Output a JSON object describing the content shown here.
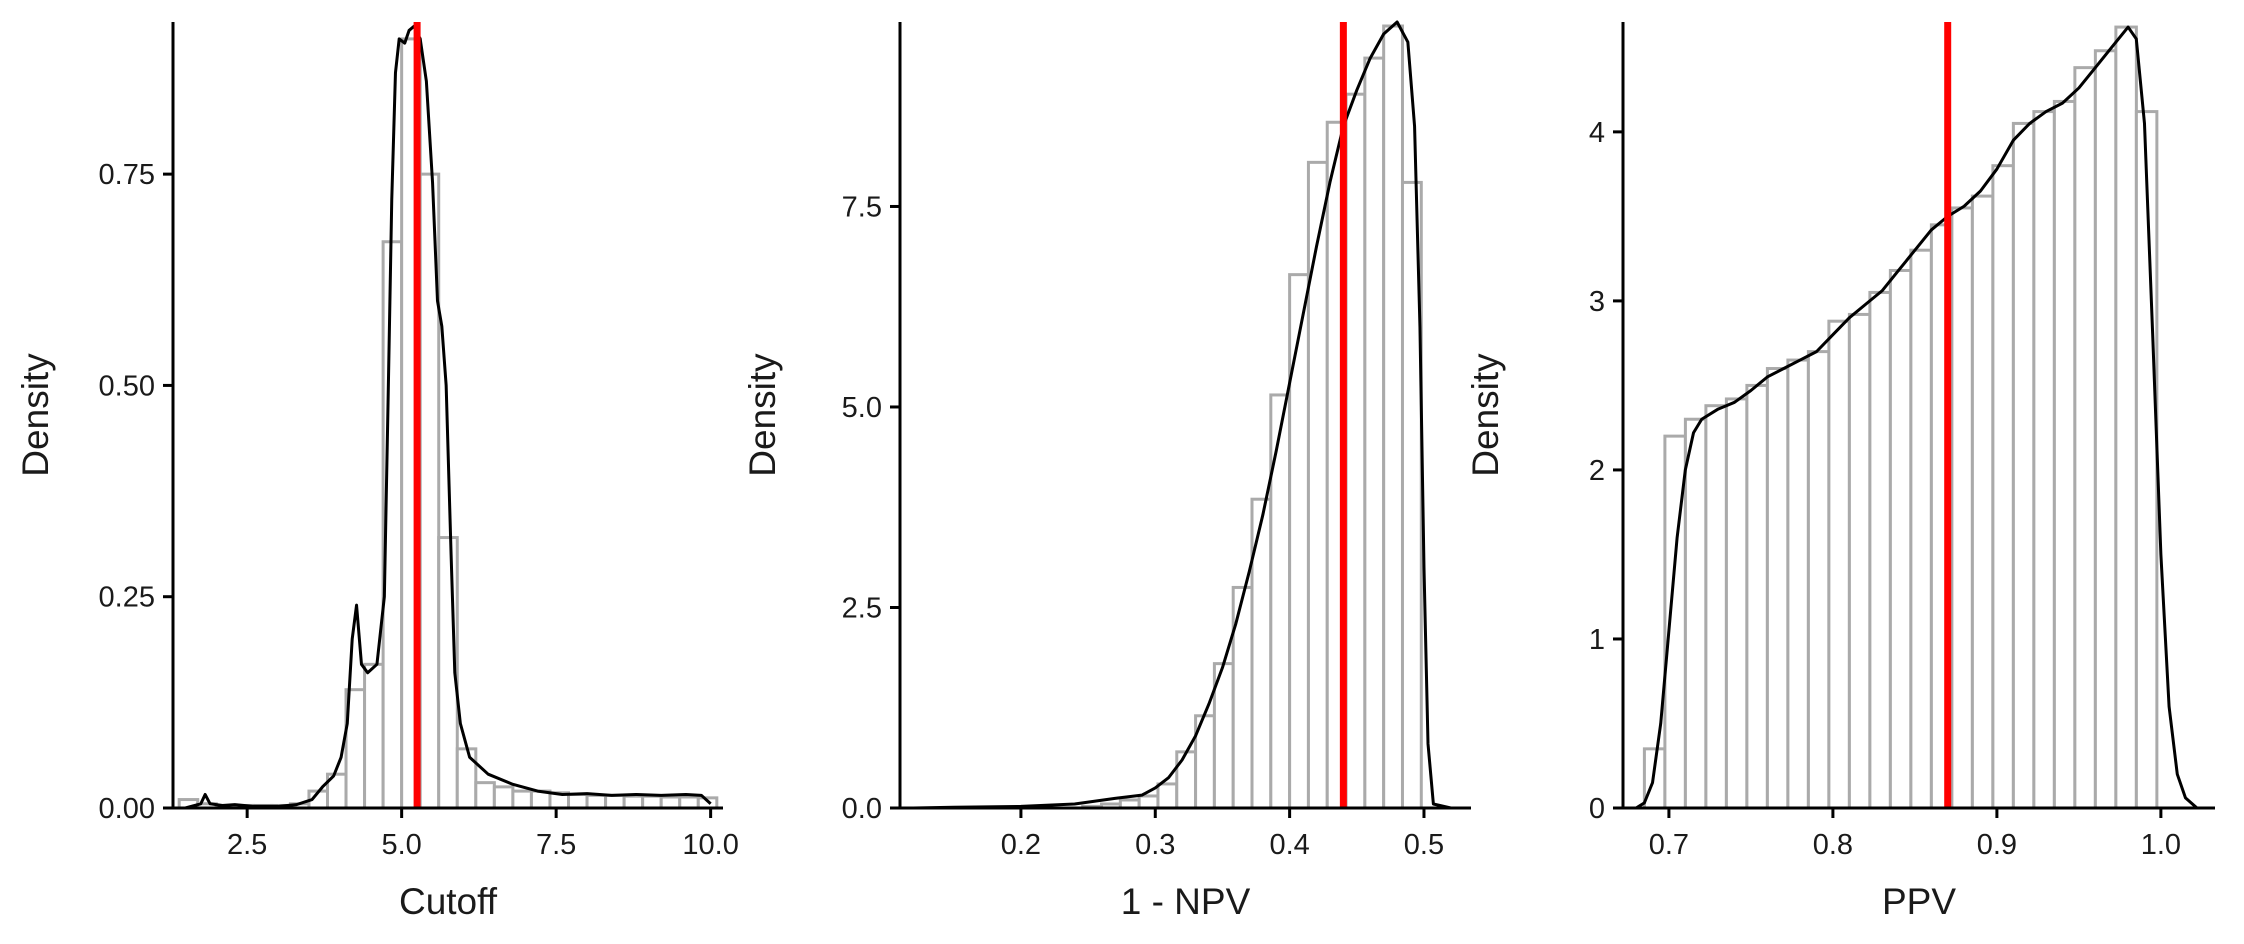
{
  "colors": {
    "bar_outline": "#aaaaaa",
    "bar_fill": "#ffffff",
    "density_line": "#000000",
    "reference_line": "#ff0000",
    "axis": "#000000"
  },
  "chart_data": [
    {
      "type": "histogram",
      "overlay": [
        "density-line",
        "vertical-reference-line"
      ],
      "xlabel": "Cutoff",
      "ylabel": "Density",
      "xlim": [
        1.3,
        10.2
      ],
      "ylim": [
        0,
        0.93
      ],
      "x_ticks": [
        2.5,
        5.0,
        7.5,
        10.0
      ],
      "x_tick_labels": [
        "2.5",
        "5.0",
        "7.5",
        "10.0"
      ],
      "y_ticks": [
        0,
        0.25,
        0.5,
        0.75
      ],
      "y_tick_labels": [
        "0.00",
        "0.25",
        "0.50",
        "0.75"
      ],
      "grid": false,
      "bin_width": 0.3,
      "bins": [
        [
          1.55,
          0.01
        ],
        [
          1.85,
          0.005
        ],
        [
          2.15,
          0.003
        ],
        [
          2.45,
          0.003
        ],
        [
          2.75,
          0.003
        ],
        [
          3.05,
          0.003
        ],
        [
          3.35,
          0.005
        ],
        [
          3.65,
          0.02
        ],
        [
          3.95,
          0.04
        ],
        [
          4.25,
          0.14
        ],
        [
          4.55,
          0.17
        ],
        [
          4.85,
          0.67
        ],
        [
          5.15,
          0.91
        ],
        [
          5.45,
          0.75
        ],
        [
          5.75,
          0.32
        ],
        [
          6.05,
          0.07
        ],
        [
          6.35,
          0.03
        ],
        [
          6.65,
          0.025
        ],
        [
          6.95,
          0.02
        ],
        [
          7.25,
          0.02
        ],
        [
          7.55,
          0.018
        ],
        [
          7.85,
          0.016
        ],
        [
          8.15,
          0.015
        ],
        [
          8.45,
          0.015
        ],
        [
          8.75,
          0.014
        ],
        [
          9.05,
          0.014
        ],
        [
          9.35,
          0.013
        ],
        [
          9.65,
          0.013
        ],
        [
          9.95,
          0.012
        ]
      ],
      "density": [
        [
          1.5,
          0.0
        ],
        [
          1.75,
          0.005
        ],
        [
          1.82,
          0.016
        ],
        [
          1.9,
          0.005
        ],
        [
          2.1,
          0.003
        ],
        [
          2.3,
          0.004
        ],
        [
          2.6,
          0.002
        ],
        [
          3.0,
          0.002
        ],
        [
          3.3,
          0.004
        ],
        [
          3.55,
          0.01
        ],
        [
          3.72,
          0.025
        ],
        [
          3.9,
          0.038
        ],
        [
          4.02,
          0.06
        ],
        [
          4.12,
          0.1
        ],
        [
          4.2,
          0.2
        ],
        [
          4.27,
          0.24
        ],
        [
          4.35,
          0.17
        ],
        [
          4.45,
          0.16
        ],
        [
          4.6,
          0.17
        ],
        [
          4.72,
          0.25
        ],
        [
          4.78,
          0.48
        ],
        [
          4.84,
          0.72
        ],
        [
          4.9,
          0.87
        ],
        [
          4.96,
          0.91
        ],
        [
          5.05,
          0.905
        ],
        [
          5.12,
          0.92
        ],
        [
          5.2,
          0.925
        ],
        [
          5.3,
          0.91
        ],
        [
          5.4,
          0.86
        ],
        [
          5.5,
          0.74
        ],
        [
          5.58,
          0.6
        ],
        [
          5.65,
          0.57
        ],
        [
          5.72,
          0.5
        ],
        [
          5.8,
          0.3
        ],
        [
          5.86,
          0.16
        ],
        [
          5.95,
          0.1
        ],
        [
          6.1,
          0.06
        ],
        [
          6.4,
          0.04
        ],
        [
          6.8,
          0.028
        ],
        [
          7.2,
          0.02
        ],
        [
          7.6,
          0.016
        ],
        [
          8.0,
          0.017
        ],
        [
          8.4,
          0.015
        ],
        [
          8.8,
          0.016
        ],
        [
          9.2,
          0.015
        ],
        [
          9.6,
          0.016
        ],
        [
          9.85,
          0.015
        ],
        [
          10.0,
          0.005
        ]
      ],
      "reference_line_x": 5.25
    },
    {
      "type": "histogram",
      "overlay": [
        "density-line",
        "vertical-reference-line"
      ],
      "xlabel": "1 - NPV",
      "ylabel": "Density",
      "xlim": [
        0.11,
        0.535
      ],
      "ylim": [
        0,
        9.8
      ],
      "x_ticks": [
        0.2,
        0.3,
        0.4,
        0.5
      ],
      "x_tick_labels": [
        "0.2",
        "0.3",
        "0.4",
        "0.5"
      ],
      "y_ticks": [
        0,
        2.5,
        5.0,
        7.5
      ],
      "y_tick_labels": [
        "0.0",
        "2.5",
        "5.0",
        "7.5"
      ],
      "grid": false,
      "bin_width": 0.014,
      "bins": [
        [
          0.253,
          0.02
        ],
        [
          0.267,
          0.05
        ],
        [
          0.281,
          0.1
        ],
        [
          0.295,
          0.15
        ],
        [
          0.309,
          0.3
        ],
        [
          0.323,
          0.7
        ],
        [
          0.337,
          1.15
        ],
        [
          0.351,
          1.8
        ],
        [
          0.365,
          2.75
        ],
        [
          0.379,
          3.85
        ],
        [
          0.393,
          5.15
        ],
        [
          0.407,
          6.65
        ],
        [
          0.421,
          8.05
        ],
        [
          0.435,
          8.55
        ],
        [
          0.449,
          8.9
        ],
        [
          0.463,
          9.35
        ],
        [
          0.477,
          9.75
        ],
        [
          0.491,
          7.8
        ]
      ],
      "density": [
        [
          0.12,
          0.0
        ],
        [
          0.15,
          0.01
        ],
        [
          0.2,
          0.02
        ],
        [
          0.24,
          0.05
        ],
        [
          0.27,
          0.12
        ],
        [
          0.29,
          0.16
        ],
        [
          0.3,
          0.25
        ],
        [
          0.31,
          0.38
        ],
        [
          0.32,
          0.6
        ],
        [
          0.33,
          0.9
        ],
        [
          0.34,
          1.3
        ],
        [
          0.35,
          1.75
        ],
        [
          0.36,
          2.3
        ],
        [
          0.37,
          2.95
        ],
        [
          0.38,
          3.65
        ],
        [
          0.39,
          4.45
        ],
        [
          0.4,
          5.3
        ],
        [
          0.41,
          6.15
        ],
        [
          0.42,
          7.0
        ],
        [
          0.43,
          7.8
        ],
        [
          0.44,
          8.5
        ],
        [
          0.45,
          8.95
        ],
        [
          0.46,
          9.35
        ],
        [
          0.47,
          9.65
        ],
        [
          0.48,
          9.8
        ],
        [
          0.488,
          9.55
        ],
        [
          0.493,
          8.5
        ],
        [
          0.497,
          6.0
        ],
        [
          0.5,
          3.0
        ],
        [
          0.503,
          0.8
        ],
        [
          0.507,
          0.05
        ],
        [
          0.52,
          0.0
        ]
      ],
      "reference_line_x": 0.44
    },
    {
      "type": "histogram",
      "overlay": [
        "density-line",
        "vertical-reference-line"
      ],
      "xlabel": "PPV",
      "ylabel": "Density",
      "xlim": [
        0.672,
        1.033
      ],
      "ylim": [
        0,
        4.65
      ],
      "x_ticks": [
        0.7,
        0.8,
        0.9,
        1.0
      ],
      "x_tick_labels": [
        "0.7",
        "0.8",
        "0.9",
        "1.0"
      ],
      "y_ticks": [
        0,
        1,
        2,
        3,
        4
      ],
      "y_tick_labels": [
        "0",
        "1",
        "2",
        "3",
        "4"
      ],
      "grid": false,
      "bin_width": 0.0125,
      "bins": [
        [
          0.6913,
          0.35
        ],
        [
          0.7038,
          2.2
        ],
        [
          0.7163,
          2.3
        ],
        [
          0.7288,
          2.38
        ],
        [
          0.7413,
          2.42
        ],
        [
          0.7538,
          2.5
        ],
        [
          0.7663,
          2.6
        ],
        [
          0.7788,
          2.65
        ],
        [
          0.7913,
          2.7
        ],
        [
          0.8038,
          2.88
        ],
        [
          0.8163,
          2.92
        ],
        [
          0.8288,
          3.05
        ],
        [
          0.8413,
          3.18
        ],
        [
          0.8538,
          3.3
        ],
        [
          0.8663,
          3.45
        ],
        [
          0.8788,
          3.55
        ],
        [
          0.8913,
          3.62
        ],
        [
          0.9038,
          3.8
        ],
        [
          0.9163,
          4.05
        ],
        [
          0.9288,
          4.12
        ],
        [
          0.9413,
          4.18
        ],
        [
          0.9538,
          4.38
        ],
        [
          0.9663,
          4.48
        ],
        [
          0.9788,
          4.62
        ],
        [
          0.9913,
          4.12
        ],
        [
          1.0038,
          0.0
        ]
      ],
      "density": [
        [
          0.68,
          0.0
        ],
        [
          0.685,
          0.03
        ],
        [
          0.69,
          0.15
        ],
        [
          0.695,
          0.5
        ],
        [
          0.7,
          1.05
        ],
        [
          0.705,
          1.6
        ],
        [
          0.71,
          2.0
        ],
        [
          0.715,
          2.22
        ],
        [
          0.72,
          2.3
        ],
        [
          0.73,
          2.36
        ],
        [
          0.74,
          2.4
        ],
        [
          0.75,
          2.47
        ],
        [
          0.76,
          2.55
        ],
        [
          0.77,
          2.6
        ],
        [
          0.78,
          2.65
        ],
        [
          0.79,
          2.7
        ],
        [
          0.8,
          2.8
        ],
        [
          0.81,
          2.9
        ],
        [
          0.82,
          2.98
        ],
        [
          0.83,
          3.06
        ],
        [
          0.84,
          3.18
        ],
        [
          0.85,
          3.3
        ],
        [
          0.86,
          3.42
        ],
        [
          0.87,
          3.5
        ],
        [
          0.88,
          3.56
        ],
        [
          0.89,
          3.65
        ],
        [
          0.9,
          3.78
        ],
        [
          0.91,
          3.95
        ],
        [
          0.92,
          4.05
        ],
        [
          0.93,
          4.12
        ],
        [
          0.94,
          4.17
        ],
        [
          0.95,
          4.26
        ],
        [
          0.96,
          4.38
        ],
        [
          0.97,
          4.5
        ],
        [
          0.98,
          4.62
        ],
        [
          0.985,
          4.55
        ],
        [
          0.99,
          4.05
        ],
        [
          0.995,
          2.8
        ],
        [
          1.0,
          1.5
        ],
        [
          1.005,
          0.6
        ],
        [
          1.01,
          0.2
        ],
        [
          1.015,
          0.06
        ],
        [
          1.022,
          0.0
        ]
      ],
      "reference_line_x": 0.87
    }
  ]
}
